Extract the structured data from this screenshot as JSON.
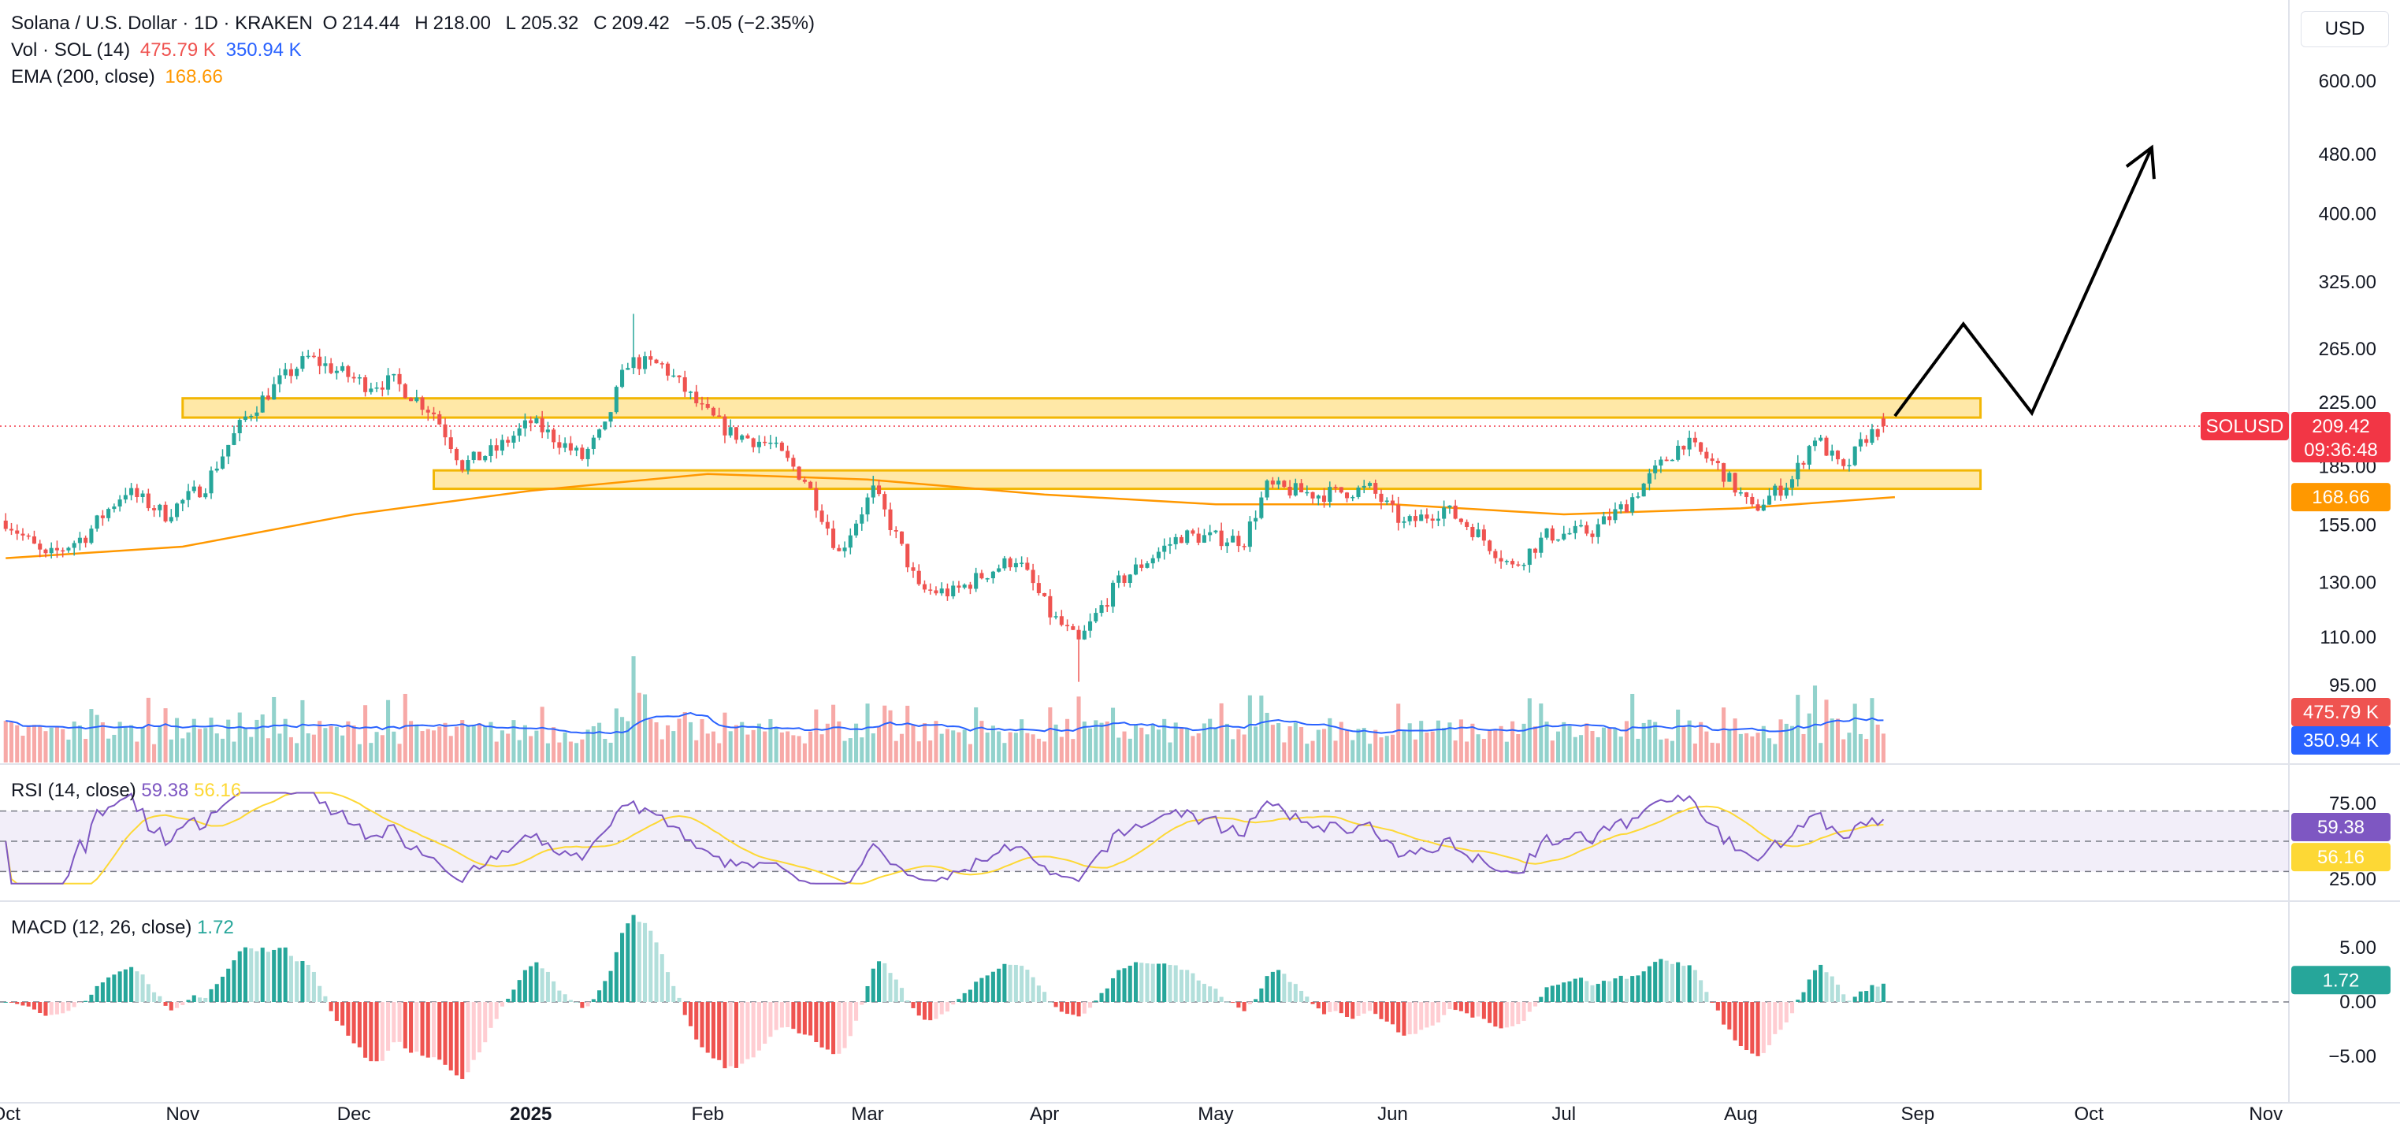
{
  "header": {
    "symbol": "Solana / U.S. Dollar · 1D · KRAKEN",
    "o_label": "O",
    "o_value": "214.44",
    "h_label": "H",
    "h_value": "218.00",
    "l_label": "L",
    "l_value": "205.32",
    "c_label": "C",
    "c_value": "209.42",
    "change": "−5.05 (−2.35%)",
    "vol_label": "Vol · SOL (14)",
    "vol_value1": "475.79 K",
    "vol_value2": "350.94 K",
    "ema_label": "EMA (200, close)",
    "ema_value": "168.66",
    "currency": "USD"
  },
  "rsi_header": {
    "label": "RSI (14, close)",
    "v1": "59.38",
    "v2": "56.16"
  },
  "macd_header": {
    "label": "MACD (12, 26, close)",
    "v1": "1.72"
  },
  "colors": {
    "up": "#26a69a",
    "down": "#ef5350",
    "up_light": "#b2dfdb",
    "down_light": "#ffcdd2",
    "ema": "#ff9800",
    "vol_ma": "#2962ff",
    "rsi": "#7e57c2",
    "rsi_ma": "#fdd835",
    "zone_fill": "#ffe08a",
    "zone_stroke": "#f2b705",
    "price_tag": "#f23645"
  },
  "price_tags": {
    "symbol": "SOLUSD",
    "price": "209.42",
    "countdown": "09:36:48",
    "ema": "168.66",
    "vol1": "475.79 K",
    "vol2": "350.94 K",
    "rsi": "59.38",
    "rsi_ma": "56.16",
    "macd": "1.72"
  },
  "chart_data": {
    "type": "candlestick",
    "title": "Solana / U.S. Dollar · 1D · KRAKEN",
    "y_scale": "log",
    "y_ticks": [
      "600.00",
      "480.00",
      "400.00",
      "325.00",
      "265.00",
      "225.00",
      "185.00",
      "155.00",
      "130.00",
      "110.00",
      "95.00"
    ],
    "x_ticks": [
      "Oct",
      "Nov",
      "Dec",
      "2025",
      "Feb",
      "Mar",
      "Apr",
      "May",
      "Jun",
      "Jul",
      "Aug",
      "Sep",
      "Oct",
      "Nov"
    ],
    "price_waypoints": [
      [
        "2024-10-01",
        157
      ],
      [
        "2024-10-08",
        140
      ],
      [
        "2024-10-15",
        150
      ],
      [
        "2024-10-22",
        172
      ],
      [
        "2024-10-29",
        160
      ],
      [
        "2024-11-05",
        175
      ],
      [
        "2024-11-12",
        215
      ],
      [
        "2024-11-18",
        240
      ],
      [
        "2024-11-23",
        258
      ],
      [
        "2024-12-03",
        238
      ],
      [
        "2024-12-08",
        240
      ],
      [
        "2024-12-15",
        218
      ],
      [
        "2024-12-20",
        186
      ],
      [
        "2024-12-26",
        195
      ],
      [
        "2025-01-01",
        212
      ],
      [
        "2025-01-06",
        200
      ],
      [
        "2025-01-10",
        190
      ],
      [
        "2025-01-14",
        208
      ],
      [
        "2025-01-18",
        255
      ],
      [
        "2025-01-24",
        252
      ],
      [
        "2025-01-31",
        220
      ],
      [
        "2025-02-05",
        205
      ],
      [
        "2025-02-12",
        198
      ],
      [
        "2025-02-18",
        178
      ],
      [
        "2025-02-24",
        142
      ],
      [
        "2025-03-02",
        172
      ],
      [
        "2025-03-10",
        127
      ],
      [
        "2025-03-16",
        126
      ],
      [
        "2025-03-22",
        134
      ],
      [
        "2025-03-27",
        140
      ],
      [
        "2025-04-02",
        118
      ],
      [
        "2025-04-07",
        108
      ],
      [
        "2025-04-14",
        130
      ],
      [
        "2025-04-25",
        150
      ],
      [
        "2025-05-06",
        148
      ],
      [
        "2025-05-10",
        174
      ],
      [
        "2025-05-19",
        170
      ],
      [
        "2025-05-28",
        173
      ],
      [
        "2025-06-03",
        155
      ],
      [
        "2025-06-10",
        163
      ],
      [
        "2025-06-15",
        153
      ],
      [
        "2025-06-22",
        136
      ],
      [
        "2025-06-28",
        150
      ],
      [
        "2025-07-06",
        152
      ],
      [
        "2025-07-12",
        165
      ],
      [
        "2025-07-22",
        200
      ],
      [
        "2025-07-28",
        185
      ],
      [
        "2025-08-03",
        162
      ],
      [
        "2025-08-10",
        178
      ],
      [
        "2025-08-14",
        203
      ],
      [
        "2025-08-19",
        182
      ],
      [
        "2025-08-23",
        203
      ],
      [
        "2025-08-26",
        209
      ]
    ],
    "ema_waypoints": [
      [
        "2024-10-01",
        140
      ],
      [
        "2024-11-01",
        145
      ],
      [
        "2024-12-01",
        160
      ],
      [
        "2025-01-01",
        172
      ],
      [
        "2025-02-01",
        181
      ],
      [
        "2025-03-01",
        178
      ],
      [
        "2025-04-01",
        170
      ],
      [
        "2025-05-01",
        165
      ],
      [
        "2025-06-01",
        165
      ],
      [
        "2025-07-01",
        160
      ],
      [
        "2025-08-01",
        163
      ],
      [
        "2025-08-28",
        168.66
      ]
    ],
    "zones": [
      {
        "from": "2024-11-01",
        "to": "2025-09-12",
        "low": 215,
        "high": 228
      },
      {
        "from": "2024-12-15",
        "to": "2025-09-12",
        "low": 173,
        "high": 183
      }
    ],
    "projection": [
      [
        "2025-08-28",
        216
      ],
      [
        "2025-09-09",
        286
      ],
      [
        "2025-09-21",
        218
      ],
      [
        "2025-10-12",
        490
      ]
    ],
    "volume_axis_max": 1000,
    "rsi_ticks": [
      "75.00",
      "25.00"
    ],
    "rsi_levels": [
      70,
      50,
      30
    ],
    "macd_ticks": [
      "5.00",
      "0.00",
      "−5.00"
    ]
  }
}
